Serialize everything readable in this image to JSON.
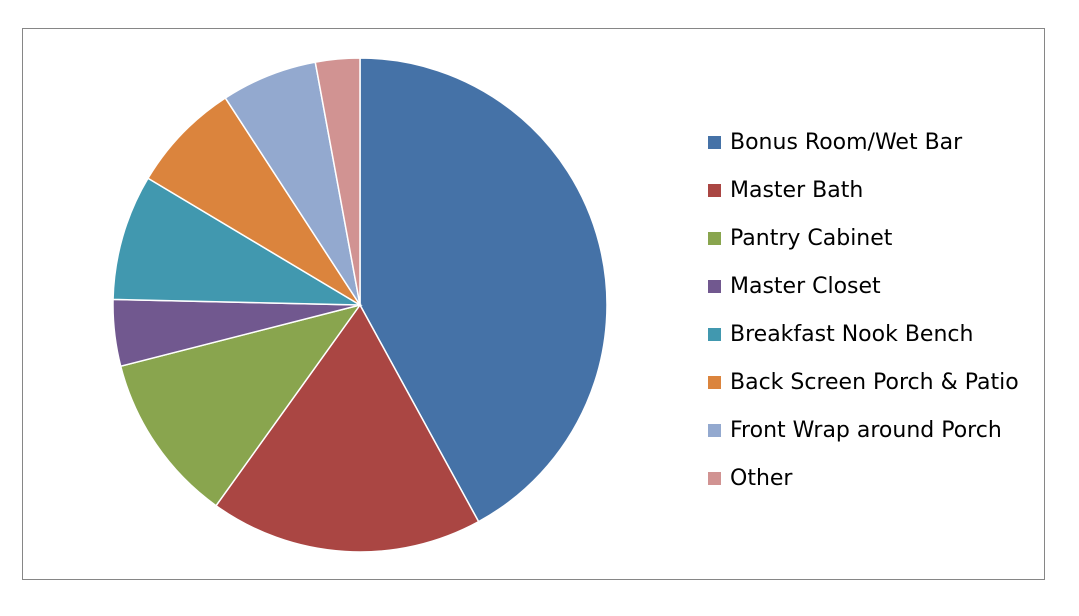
{
  "chart_data": {
    "type": "pie",
    "start_angle_deg": 0,
    "direction": "clockwise",
    "legend_position": "right",
    "slices": [
      {
        "label": "Bonus Room/Wet Bar",
        "value": 43.5,
        "color": "#4572A7"
      },
      {
        "label": "Master Bath",
        "value": 18.5,
        "color": "#AA4643"
      },
      {
        "label": "Pantry Cabinet",
        "value": 11.5,
        "color": "#89A54E"
      },
      {
        "label": "Master Closet",
        "value": 4.5,
        "color": "#71588F"
      },
      {
        "label": "Breakfast Nook Bench",
        "value": 8.5,
        "color": "#4198AF"
      },
      {
        "label": "Back Screen Porch & Patio",
        "value": 7.5,
        "color": "#DB843D"
      },
      {
        "label": "Front Wrap around Porch",
        "value": 6.5,
        "color": "#93A9CF"
      },
      {
        "label": "Other",
        "value": 3.0,
        "color": "#D19392"
      }
    ]
  }
}
